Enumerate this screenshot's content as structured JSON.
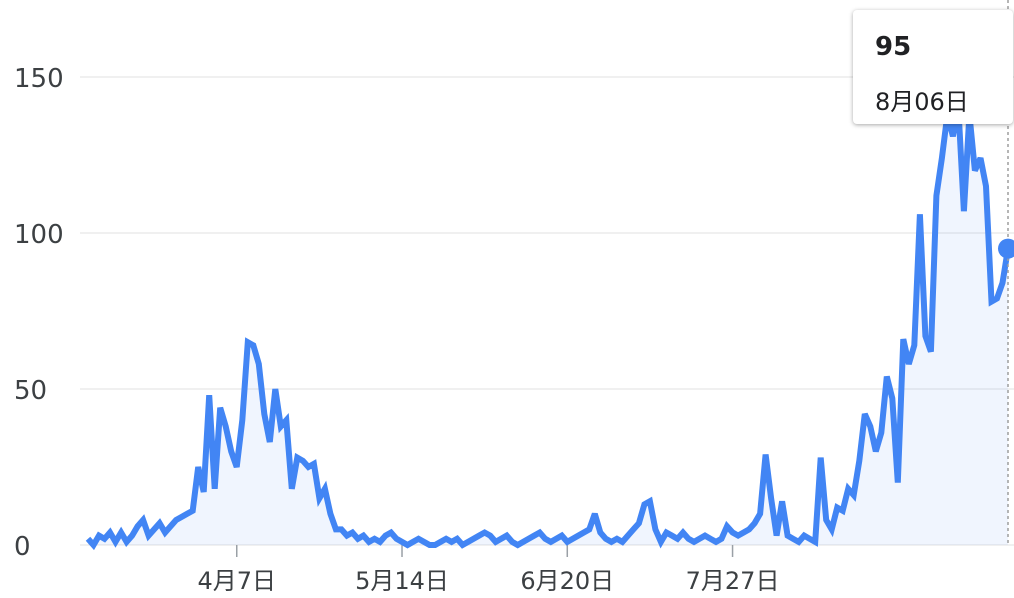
{
  "chart_data": {
    "type": "area",
    "ylim": [
      0,
      155
    ],
    "yticks": [
      0,
      50,
      100,
      150
    ],
    "ytick_labels": [
      "0",
      "50",
      "100",
      "150"
    ],
    "xticks": [
      {
        "index": 27,
        "label": "4月7日"
      },
      {
        "index": 57,
        "label": "5月14日"
      },
      {
        "index": 87,
        "label": "6月20日"
      },
      {
        "index": 117,
        "label": "7月27日"
      }
    ],
    "values": [
      2,
      0,
      3,
      2,
      4,
      1,
      4,
      1,
      3,
      6,
      8,
      3,
      5,
      7,
      4,
      6,
      8,
      9,
      10,
      11,
      25,
      17,
      48,
      18,
      44,
      38,
      30,
      25,
      40,
      65,
      64,
      58,
      42,
      33,
      50,
      38,
      40,
      18,
      28,
      27,
      25,
      26,
      15,
      18,
      10,
      5,
      5,
      3,
      4,
      2,
      3,
      1,
      2,
      1,
      3,
      4,
      2,
      1,
      0,
      1,
      2,
      1,
      0,
      0,
      1,
      2,
      1,
      2,
      0,
      1,
      2,
      3,
      4,
      3,
      1,
      2,
      3,
      1,
      0,
      1,
      2,
      3,
      4,
      2,
      1,
      2,
      3,
      1,
      2,
      3,
      4,
      5,
      10,
      4,
      2,
      1,
      2,
      1,
      3,
      5,
      7,
      13,
      14,
      5,
      1,
      4,
      3,
      2,
      4,
      2,
      1,
      2,
      3,
      2,
      1,
      2,
      6,
      4,
      3,
      4,
      5,
      7,
      10,
      29,
      15,
      3,
      14,
      3,
      2,
      1,
      3,
      2,
      1,
      28,
      8,
      5,
      12,
      11,
      18,
      16,
      27,
      42,
      38,
      30,
      36,
      54,
      47,
      20,
      66,
      58,
      64,
      106,
      67,
      62,
      112,
      124,
      138,
      131,
      140,
      107,
      138,
      120,
      124,
      115,
      78,
      79,
      84,
      95
    ],
    "tooltip": {
      "value": "95",
      "date": "8月06日"
    },
    "colors": {
      "line": "#4285f4",
      "fill": "#4285f4",
      "grid": "#ececec",
      "text": "#3c4043"
    }
  }
}
